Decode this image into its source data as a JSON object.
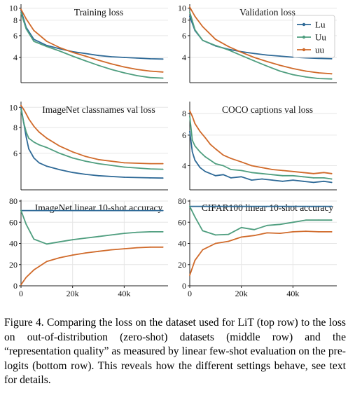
{
  "figure": {
    "caption_label": "Figure 4.",
    "caption_text": "Comparing the loss on the dataset used for LiT (top row) to the loss on out-of-distribution (zero-shot) datasets (middle row) and the “representation quality” as measured by linear few-shot evaluation on the pre-logits (bottom row). This reveals how the different settings behave, see text for details."
  },
  "colors": {
    "Lu": "#2f6a97",
    "Uu": "#4f9e7f",
    "uu": "#d06a2a",
    "axis": "#222222",
    "grid": "#e6e6e6"
  },
  "chart_data": [
    {
      "type": "line",
      "title": "Training loss",
      "xlim": [
        0,
        57000
      ],
      "ylim": [
        2.5,
        10.5
      ],
      "yscale": "log",
      "yticks": [
        4,
        6,
        8,
        10
      ],
      "xticks": [],
      "legend": null,
      "series": [
        {
          "name": "Lu",
          "x": [
            0,
            2000,
            5000,
            10000,
            15000,
            20000,
            25000,
            30000,
            35000,
            40000,
            45000,
            50000,
            55000
          ],
          "y": [
            9.6,
            7.0,
            5.6,
            5.0,
            4.7,
            4.45,
            4.3,
            4.15,
            4.05,
            4.0,
            3.95,
            3.9,
            3.88
          ]
        },
        {
          "name": "Uu",
          "x": [
            0,
            2000,
            5000,
            10000,
            15000,
            20000,
            25000,
            30000,
            35000,
            40000,
            45000,
            50000,
            55000
          ],
          "y": [
            9.2,
            6.8,
            5.4,
            4.9,
            4.5,
            4.1,
            3.75,
            3.45,
            3.2,
            3.0,
            2.85,
            2.75,
            2.72
          ]
        },
        {
          "name": "uu",
          "x": [
            0,
            2000,
            5000,
            10000,
            15000,
            20000,
            25000,
            30000,
            35000,
            40000,
            45000,
            50000,
            55000
          ],
          "y": [
            9.8,
            8.2,
            6.6,
            5.4,
            4.8,
            4.4,
            4.1,
            3.8,
            3.55,
            3.35,
            3.2,
            3.1,
            3.05
          ]
        }
      ]
    },
    {
      "type": "line",
      "title": "Validation loss",
      "xlim": [
        0,
        57000
      ],
      "ylim": [
        2.5,
        10.5
      ],
      "yscale": "log",
      "yticks": [
        4,
        6,
        8,
        10
      ],
      "xticks": [],
      "legend": "top-right",
      "series": [
        {
          "name": "Lu",
          "x": [
            0,
            2000,
            5000,
            10000,
            15000,
            20000,
            25000,
            30000,
            35000,
            40000,
            45000,
            50000,
            55000
          ],
          "y": [
            8.6,
            6.6,
            5.5,
            4.95,
            4.65,
            4.45,
            4.3,
            4.18,
            4.1,
            4.02,
            3.97,
            3.93,
            3.9
          ]
        },
        {
          "name": "Uu",
          "x": [
            0,
            2000,
            5000,
            10000,
            15000,
            20000,
            25000,
            30000,
            35000,
            40000,
            45000,
            50000,
            55000
          ],
          "y": [
            9.3,
            6.7,
            5.5,
            5.0,
            4.6,
            4.15,
            3.75,
            3.4,
            3.1,
            2.9,
            2.78,
            2.7,
            2.68
          ]
        },
        {
          "name": "uu",
          "x": [
            0,
            2000,
            5000,
            10000,
            15000,
            20000,
            25000,
            30000,
            35000,
            40000,
            45000,
            50000,
            55000
          ],
          "y": [
            10.2,
            8.6,
            7.1,
            5.6,
            4.9,
            4.4,
            4.0,
            3.7,
            3.45,
            3.25,
            3.1,
            3.0,
            2.95
          ]
        }
      ]
    },
    {
      "type": "line",
      "title": "ImageNet classnames val loss",
      "xlim": [
        0,
        57000
      ],
      "ylim": [
        4.0,
        10.5
      ],
      "yscale": "log",
      "yticks": [
        6,
        8,
        10
      ],
      "xticks": [],
      "legend": null,
      "series": [
        {
          "name": "Lu",
          "x": [
            0,
            1000,
            2000,
            3000,
            5000,
            7000,
            10000,
            15000,
            20000,
            25000,
            30000,
            40000,
            50000,
            55000
          ],
          "y": [
            10.0,
            8.5,
            7.2,
            6.3,
            5.7,
            5.4,
            5.2,
            5.0,
            4.85,
            4.75,
            4.68,
            4.6,
            4.57,
            4.56
          ]
        },
        {
          "name": "Uu",
          "x": [
            0,
            1000,
            2000,
            3000,
            5000,
            7000,
            10000,
            15000,
            20000,
            25000,
            30000,
            40000,
            50000,
            55000
          ],
          "y": [
            9.8,
            8.5,
            7.6,
            7.1,
            6.8,
            6.6,
            6.4,
            6.0,
            5.7,
            5.5,
            5.35,
            5.15,
            5.05,
            5.03
          ]
        },
        {
          "name": "uu",
          "x": [
            0,
            1000,
            2000,
            3000,
            5000,
            7000,
            10000,
            15000,
            20000,
            25000,
            30000,
            40000,
            50000,
            55000
          ],
          "y": [
            10.2,
            9.8,
            9.3,
            8.8,
            8.1,
            7.6,
            7.1,
            6.5,
            6.1,
            5.8,
            5.6,
            5.4,
            5.35,
            5.35
          ]
        }
      ]
    },
    {
      "type": "line",
      "title": "COCO captions val loss",
      "xlim": [
        0,
        57000
      ],
      "ylim": [
        2.9,
        9.2
      ],
      "yscale": "log",
      "yticks": [
        4,
        6,
        8
      ],
      "xticks": [],
      "legend": null,
      "series": [
        {
          "name": "Lu",
          "x": [
            0,
            1000,
            2000,
            4000,
            6000,
            8000,
            10000,
            13000,
            16000,
            20000,
            24000,
            28000,
            32000,
            36000,
            40000,
            44000,
            48000,
            52000,
            55000
          ],
          "y": [
            6.3,
            4.8,
            4.3,
            3.9,
            3.7,
            3.6,
            3.5,
            3.55,
            3.4,
            3.45,
            3.3,
            3.35,
            3.3,
            3.25,
            3.3,
            3.25,
            3.2,
            3.25,
            3.2
          ]
        },
        {
          "name": "Uu",
          "x": [
            0,
            1000,
            2000,
            4000,
            6000,
            8000,
            10000,
            13000,
            16000,
            20000,
            24000,
            28000,
            32000,
            36000,
            40000,
            44000,
            48000,
            52000,
            55000
          ],
          "y": [
            7.7,
            5.6,
            5.2,
            4.8,
            4.5,
            4.3,
            4.1,
            4.0,
            3.8,
            3.75,
            3.65,
            3.6,
            3.55,
            3.5,
            3.5,
            3.45,
            3.4,
            3.4,
            3.35
          ]
        },
        {
          "name": "uu",
          "x": [
            0,
            1000,
            2000,
            4000,
            6000,
            8000,
            10000,
            13000,
            16000,
            20000,
            24000,
            28000,
            32000,
            36000,
            40000,
            44000,
            48000,
            52000,
            55000
          ],
          "y": [
            8.3,
            7.7,
            7.0,
            6.3,
            5.8,
            5.3,
            5.0,
            4.6,
            4.4,
            4.2,
            4.0,
            3.9,
            3.8,
            3.75,
            3.7,
            3.65,
            3.6,
            3.65,
            3.6
          ]
        }
      ]
    },
    {
      "type": "line",
      "title": "ImageNet linear 10-shot accuracy",
      "xlim": [
        0,
        57000
      ],
      "ylim": [
        0,
        80
      ],
      "yscale": "linear",
      "yticks": [
        0,
        20,
        40,
        60,
        80
      ],
      "xticks": [
        0,
        20000,
        40000
      ],
      "xticklabels": [
        "0",
        "20k",
        "40k"
      ],
      "legend": null,
      "series": [
        {
          "name": "Lu",
          "x": [
            0,
            5000,
            10000,
            20000,
            30000,
            40000,
            50000,
            55000
          ],
          "y": [
            71,
            71,
            71,
            71,
            71,
            71,
            71,
            71
          ]
        },
        {
          "name": "Uu",
          "x": [
            0,
            2000,
            5000,
            10000,
            15000,
            20000,
            25000,
            30000,
            35000,
            40000,
            45000,
            50000,
            55000
          ],
          "y": [
            71,
            58,
            44,
            39.5,
            41.5,
            43.5,
            45,
            46.5,
            48,
            49.5,
            50.5,
            51,
            51
          ]
        },
        {
          "name": "uu",
          "x": [
            0,
            2000,
            5000,
            10000,
            15000,
            20000,
            25000,
            30000,
            35000,
            40000,
            45000,
            50000,
            55000
          ],
          "y": [
            1,
            8,
            15,
            23,
            26.5,
            29,
            31,
            32.5,
            34,
            35,
            36,
            36.5,
            36.5
          ]
        }
      ]
    },
    {
      "type": "line",
      "title": "CIFAR100 linear 10-shot accuracy",
      "xlim": [
        0,
        57000
      ],
      "ylim": [
        0,
        80
      ],
      "yscale": "linear",
      "yticks": [
        0,
        20,
        40,
        60,
        80
      ],
      "xticks": [
        0,
        20000,
        40000
      ],
      "xticklabels": [
        "0",
        "20k",
        "40k"
      ],
      "legend": null,
      "series": [
        {
          "name": "Lu",
          "x": [
            0,
            5000,
            10000,
            20000,
            30000,
            40000,
            50000,
            55000
          ],
          "y": [
            75,
            75,
            75,
            75,
            75,
            75,
            75,
            75
          ]
        },
        {
          "name": "Uu",
          "x": [
            0,
            2000,
            5000,
            10000,
            15000,
            20000,
            25000,
            30000,
            35000,
            40000,
            45000,
            50000,
            55000
          ],
          "y": [
            75,
            65,
            52,
            48,
            48.5,
            55,
            53,
            57,
            58,
            60,
            62,
            62,
            62
          ]
        },
        {
          "name": "uu",
          "x": [
            0,
            2000,
            5000,
            10000,
            15000,
            20000,
            25000,
            30000,
            35000,
            40000,
            45000,
            50000,
            55000
          ],
          "y": [
            10,
            24,
            34,
            40,
            42,
            46,
            47.5,
            50,
            49.5,
            51,
            51.5,
            51,
            51
          ]
        }
      ]
    }
  ]
}
